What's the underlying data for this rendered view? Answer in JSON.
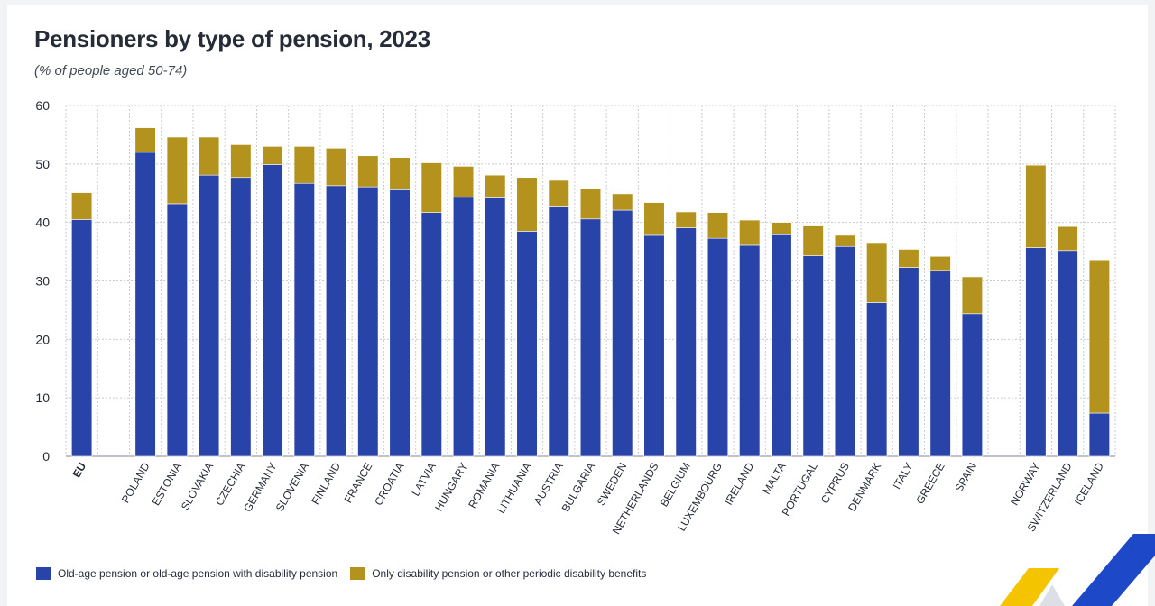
{
  "title": "Pensioners by type of pension, 2023",
  "subtitle": "(% of people aged 50-74)",
  "colors": {
    "old_age": "#2944a8",
    "disability": "#b3921e",
    "grid": "#c7cbd1",
    "text": "#262b38"
  },
  "legend": [
    {
      "label": "Old-age pension or old-age pension with disability pension",
      "color": "#2944a8"
    },
    {
      "label": "Only disability pension or other periodic disability benefits",
      "color": "#b3921e"
    }
  ],
  "chart_data": {
    "type": "bar",
    "stacked": true,
    "title": "Pensioners by type of pension, 2023",
    "subtitle": "(% of people aged 50-74)",
    "xlabel": "",
    "ylabel": "",
    "ylim": [
      0,
      60
    ],
    "yticks": [
      0,
      10,
      20,
      30,
      40,
      50,
      60
    ],
    "grid": true,
    "legend_position": "bottom-left",
    "groups": [
      {
        "name": "eu",
        "categories": [
          "EU"
        ]
      },
      {
        "name": "eu-countries",
        "categories": [
          "POLAND",
          "ESTONIA",
          "SLOVAKIA",
          "CZECHIA",
          "GERMANY",
          "SLOVENIA",
          "FINLAND",
          "FRANCE",
          "CROATIA",
          "LATVIA",
          "HUNGARY",
          "ROMANIA",
          "LITHUANIA",
          "AUSTRIA",
          "BULGARIA",
          "SWEDEN",
          "NETHERLANDS",
          "BELGIUM",
          "LUXEMBOURG",
          "IRELAND",
          "MALTA",
          "PORTUGAL",
          "CYPRUS",
          "DENMARK",
          "ITALY",
          "GREECE",
          "SPAIN"
        ]
      },
      {
        "name": "efta",
        "categories": [
          "NORWAY",
          "SWITZERLAND",
          "ICELAND"
        ]
      }
    ],
    "categories": [
      "EU",
      "POLAND",
      "ESTONIA",
      "SLOVAKIA",
      "CZECHIA",
      "GERMANY",
      "SLOVENIA",
      "FINLAND",
      "FRANCE",
      "CROATIA",
      "LATVIA",
      "HUNGARY",
      "ROMANIA",
      "LITHUANIA",
      "AUSTRIA",
      "BULGARIA",
      "SWEDEN",
      "NETHERLANDS",
      "BELGIUM",
      "LUXEMBOURG",
      "IRELAND",
      "MALTA",
      "PORTUGAL",
      "CYPRUS",
      "DENMARK",
      "ITALY",
      "GREECE",
      "SPAIN",
      "NORWAY",
      "SWITZERLAND",
      "ICELAND"
    ],
    "series": [
      {
        "name": "Old-age pension or old-age pension with disability pension",
        "values": [
          40.5,
          52.0,
          43.2,
          48.1,
          47.7,
          49.9,
          46.7,
          46.3,
          46.1,
          45.6,
          41.7,
          44.3,
          44.2,
          38.5,
          42.8,
          40.6,
          42.1,
          37.8,
          39.1,
          37.3,
          36.1,
          37.9,
          34.3,
          35.9,
          26.3,
          32.3,
          31.8,
          24.4,
          35.7,
          35.2,
          7.4
        ]
      },
      {
        "name": "Only disability pension or other periodic disability benefits",
        "values": [
          4.6,
          4.2,
          11.4,
          6.5,
          5.6,
          3.1,
          6.3,
          6.4,
          5.3,
          5.5,
          8.5,
          5.3,
          3.9,
          9.2,
          4.4,
          5.1,
          2.8,
          5.6,
          2.7,
          4.4,
          4.3,
          2.1,
          5.1,
          1.9,
          10.1,
          3.1,
          2.4,
          6.3,
          14.1,
          4.1,
          26.2
        ]
      }
    ]
  }
}
